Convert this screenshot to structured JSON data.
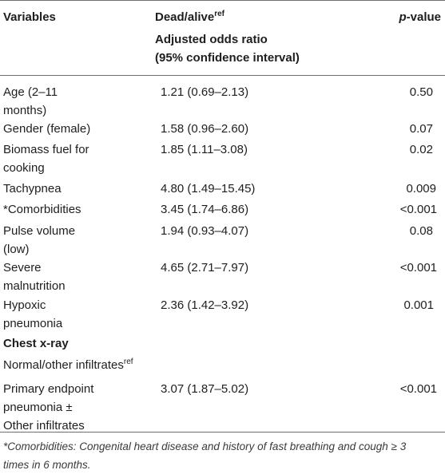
{
  "header": {
    "variables": "Variables",
    "dead_alive": "Dead/alive",
    "dead_alive_sup": "ref",
    "aor_line1": "Adjusted odds ratio",
    "aor_line2": "(95% confidence interval)",
    "p_italic": "p",
    "p_rest": "-value"
  },
  "rows": [
    {
      "var": [
        "Age (2–11",
        "months)"
      ],
      "or": "1.21 (0.69–2.13)",
      "p": "0.50"
    },
    {
      "var": [
        "Gender (female)"
      ],
      "or": "1.58 (0.96–2.60)",
      "p": "0.07"
    },
    {
      "var": [
        "Biomass fuel for",
        "cooking"
      ],
      "or": "1.85 (1.11–3.08)",
      "p": "0.02"
    },
    {
      "var": [
        "Tachypnea"
      ],
      "or": "4.80 (1.49–15.45)",
      "p": "0.009"
    },
    {
      "var": [
        "*Comorbidities"
      ],
      "or": "3.45 (1.74–6.86)",
      "p": "<0.001"
    },
    {
      "var": [
        "Pulse volume",
        "(low)"
      ],
      "or": "1.94 (0.93–4.07)",
      "p": "0.08"
    },
    {
      "var": [
        "Severe",
        "malnutrition"
      ],
      "or": "4.65 (2.71–7.97)",
      "p": "<0.001"
    },
    {
      "var": [
        "Hypoxic",
        "pneumonia"
      ],
      "or": "2.36 (1.42–3.92)",
      "p": "0.001"
    }
  ],
  "section": "Chest x-ray",
  "ref_row": {
    "label": "Normal/other infiltrates",
    "sup": "ref"
  },
  "last_row": {
    "var": [
      "Primary endpoint",
      "pneumonia ±",
      "Other infiltrates"
    ],
    "or": "3.07 (1.87–5.02)",
    "p": "<0.001"
  },
  "footnote": {
    "line1": "*Comorbidities: Congenital heart disease and history of fast breathing and cough ≥ 3",
    "line2": "times in 6 months."
  }
}
